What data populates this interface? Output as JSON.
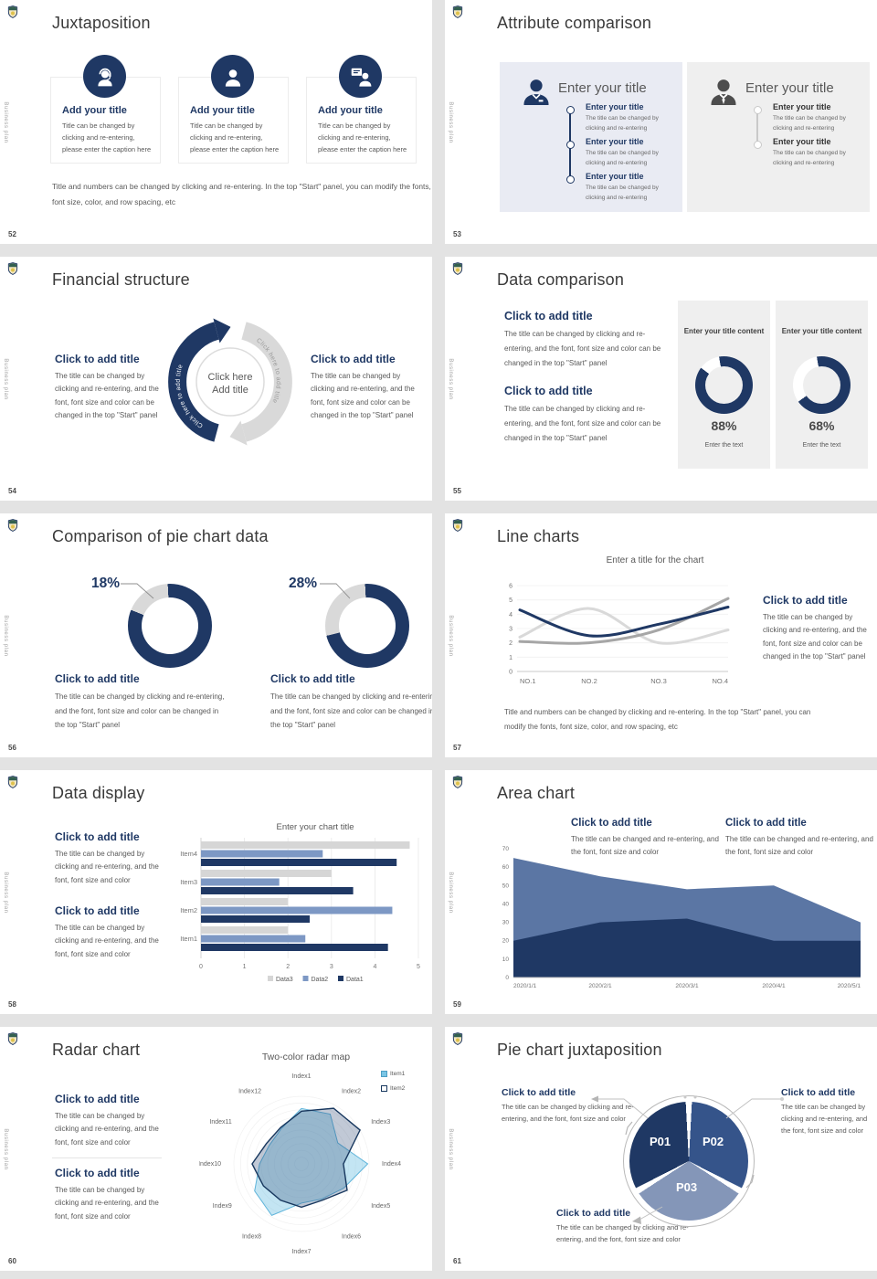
{
  "common": {
    "vertical_label": "Business plan"
  },
  "colors": {
    "navy": "#1f3864",
    "mid_blue": "#35548a",
    "light_steel": "#8496b8",
    "steel_bar": "#7d98c4",
    "area_light": "#5b76a4",
    "track_gray": "#d9d9d9",
    "body_text": "#595959",
    "panel_blue": "#e9ebf3",
    "panel_gray": "#efefef"
  },
  "slides": {
    "juxtaposition": {
      "number": "52",
      "title": "Juxtaposition",
      "cards": [
        {
          "icon": "support-agent-icon",
          "title": "Add your title",
          "caption": "Title can be changed by clicking and re-entering, please enter the caption here"
        },
        {
          "icon": "person-icon",
          "title": "Add your title",
          "caption": "Title can be changed by clicking and re-entering, please enter the caption here"
        },
        {
          "icon": "presenter-icon",
          "title": "Add your title",
          "caption": "Title can be changed by clicking and re-entering, please enter the caption here"
        }
      ],
      "footer": "Title and numbers can be changed by clicking and re-entering. In the top \"Start\" panel, you can modify the fonts, font size, color, and row spacing, etc"
    },
    "attribute_comparison": {
      "number": "53",
      "title": "Attribute comparison",
      "panels": [
        {
          "heading": "Enter your title",
          "items": [
            {
              "title": "Enter your title",
              "body": "The title can be changed by clicking and re-entering"
            },
            {
              "title": "Enter your title",
              "body": "The title can be changed by clicking and re-entering"
            },
            {
              "title": "Enter your title",
              "body": "The title can be changed by clicking and re-entering"
            }
          ]
        },
        {
          "heading": "Enter your title",
          "items": [
            {
              "title": "Enter your title",
              "body": "The title can be changed by clicking and re-entering"
            },
            {
              "title": "Enter your title",
              "body": "The title can be changed by clicking and re-entering"
            }
          ]
        }
      ]
    },
    "financial_structure": {
      "number": "54",
      "title": "Financial structure",
      "left_block": {
        "title": "Click to add title",
        "body": "The title can be changed by clicking and re-entering, and the font, font size and color can be changed in the top \"Start\" panel"
      },
      "right_block": {
        "title": "Click to add title",
        "body": "The title can be changed by clicking and re-entering, and the font, font size and color can be changed in the top \"Start\" panel"
      },
      "center": {
        "line1": "Click here",
        "line2": "Add title"
      },
      "arc_left_label": "Click here to add title",
      "arc_right_label": "Click here to add title"
    },
    "data_comparison": {
      "number": "55",
      "title": "Data comparison",
      "blocks": [
        {
          "title": "Click to add title",
          "body": "The title can be changed by clicking and re-entering, and the font, font size and color can be changed in the top \"Start\" panel"
        },
        {
          "title": "Click to add title",
          "body": "The title can be changed by clicking and re-entering, and the font, font size and color can be changed in the top \"Start\" panel"
        }
      ],
      "cards": [
        {
          "heading": "Enter your title content",
          "caption": "Enter the text"
        },
        {
          "heading": "Enter your title content",
          "caption": "Enter the text"
        }
      ]
    },
    "pie_data": {
      "number": "56",
      "title": "Comparison of pie chart data",
      "columns": [
        {
          "title": "Click to add title",
          "body": "The title can be changed by clicking and re-entering, and the font, font size and color can be changed in the top \"Start\" panel"
        },
        {
          "title": "Click to add title",
          "body": "The title can be changed by clicking and re-entering, and the font, font size and color can be changed in the top \"Start\" panel"
        }
      ]
    },
    "line_charts": {
      "number": "57",
      "title": "Line charts",
      "block": {
        "title": "Click to add title",
        "body": "The title can be changed by clicking and re-entering, and the font, font size and color can be changed in the top \"Start\" panel"
      },
      "footer": "Title and numbers can be changed by clicking and re-entering. In the top \"Start\" panel, you can modify the fonts, font size, color, and row spacing, etc"
    },
    "data_display": {
      "number": "58",
      "title": "Data display",
      "blocks": [
        {
          "title": "Click to add title",
          "body": "The title can be changed by clicking and re-entering, and the font, font size and color"
        },
        {
          "title": "Click to add title",
          "body": "The title can be changed by clicking and re-entering, and the font, font size and color"
        }
      ]
    },
    "area_chart": {
      "number": "59",
      "title": "Area chart",
      "blocks": [
        {
          "title": "Click to add title",
          "body": "The title can be changed and re-entering, and the font, font size and color"
        },
        {
          "title": "Click to add title",
          "body": "The title can be changed and re-entering, and the font, font size and color"
        }
      ]
    },
    "radar_chart": {
      "number": "60",
      "title": "Radar chart",
      "blocks": [
        {
          "title": "Click to add title",
          "body": "The title can be changed by clicking and re-entering, and the font, font size and color"
        },
        {
          "title": "Click to add title",
          "body": "The title can be changed by clicking and re-entering, and the font, font size and color"
        }
      ]
    },
    "pie_juxtaposition": {
      "number": "61",
      "title": "Pie chart juxtaposition",
      "blocks": [
        {
          "title": "Click to add title",
          "body": "The title can be changed by clicking and re-entering, and the font, font size and color"
        },
        {
          "title": "Click to add title",
          "body": "The title can be changed by clicking and re-entering, and the font, font size and color"
        },
        {
          "title": "Click to add title",
          "body": "The title can be changed by clicking and re-entering, and the font, font size and color"
        }
      ]
    }
  },
  "chart_data": [
    {
      "id": "donuts-55",
      "type": "pie",
      "variant": "donut",
      "items": [
        {
          "percent": 88,
          "label": "88%"
        },
        {
          "percent": 68,
          "label": "68%"
        }
      ],
      "ring_color": "#1f3864",
      "track_color": "#ffffff"
    },
    {
      "id": "donuts-56",
      "type": "pie",
      "variant": "donut",
      "items": [
        {
          "percent": 18,
          "label": "18%"
        },
        {
          "percent": 28,
          "label": "28%"
        }
      ],
      "slice_color": "#d9d9d9",
      "remainder_color": "#1f3864"
    },
    {
      "id": "line-57",
      "type": "line",
      "title": "Enter a title for the chart",
      "x": [
        "NO.1",
        "NO.2",
        "NO.3",
        "NO.4"
      ],
      "ylim": [
        0,
        6
      ],
      "yticks": [
        6,
        5,
        4,
        3,
        2,
        1,
        0
      ],
      "grid": true,
      "legend": false,
      "series": [
        {
          "name": "series-navy",
          "color": "#1f3864",
          "values": [
            4.3,
            2.5,
            3.3,
            4.5
          ]
        },
        {
          "name": "series-gray",
          "color": "#a6a6a6",
          "values": [
            2.1,
            2.0,
            2.9,
            5.1
          ]
        },
        {
          "name": "series-light",
          "color": "#d9d9d9",
          "values": [
            2.4,
            4.4,
            2.0,
            2.9
          ]
        }
      ]
    },
    {
      "id": "bars-58",
      "type": "bar",
      "orientation": "horizontal",
      "title": "Enter your chart title",
      "categories": [
        "Item1",
        "Item2",
        "Item3",
        "Item4"
      ],
      "xlim": [
        0,
        5
      ],
      "xticks": [
        0,
        1,
        2,
        3,
        4,
        5
      ],
      "legend_order": [
        "Data3",
        "Data2",
        "Data1"
      ],
      "legend_position": "bottom",
      "series": [
        {
          "name": "Data1",
          "color": "#1f3864",
          "values": [
            4.3,
            2.5,
            3.5,
            4.5
          ]
        },
        {
          "name": "Data2",
          "color": "#7d98c4",
          "values": [
            2.4,
            4.4,
            1.8,
            2.8
          ]
        },
        {
          "name": "Data3",
          "color": "#d6d6d6",
          "values": [
            2.0,
            2.0,
            3.0,
            4.8
          ]
        }
      ]
    },
    {
      "id": "area-59",
      "type": "area",
      "x": [
        "2020/1/1",
        "2020/2/1",
        "2020/3/1",
        "2020/4/1",
        "2020/5/1"
      ],
      "ylim": [
        0,
        70
      ],
      "yticks": [
        70,
        60,
        50,
        40,
        30,
        20,
        10,
        0
      ],
      "series": [
        {
          "name": "series-light-blue",
          "color": "#5b76a4",
          "values": [
            65,
            55,
            48,
            50,
            30
          ]
        },
        {
          "name": "series-navy",
          "color": "#1f3864",
          "values": [
            20,
            30,
            32,
            20,
            20
          ]
        }
      ]
    },
    {
      "id": "radar-60",
      "type": "radar",
      "title": "Two-color radar map",
      "rmax": 1,
      "categories": [
        "Index1",
        "Index2",
        "Index3",
        "Index4",
        "Index5",
        "Index6",
        "Index7",
        "Index8",
        "Index9",
        "Index10",
        "Index11",
        "Index12"
      ],
      "series": [
        {
          "name": "Item1",
          "color": "#5fb4da",
          "fill": "rgba(122,197,228,0.45)",
          "values": [
            0.82,
            0.85,
            0.62,
            0.98,
            0.72,
            0.6,
            0.58,
            0.88,
            0.8,
            0.62,
            0.55,
            0.6
          ]
        },
        {
          "name": "Item2",
          "color": "#17375e",
          "fill": "rgba(49,77,120,0.30)",
          "values": [
            0.78,
            0.95,
            1.0,
            0.62,
            0.78,
            0.62,
            0.64,
            0.62,
            0.65,
            0.73,
            0.6,
            0.62
          ]
        }
      ]
    },
    {
      "id": "pie-61",
      "type": "pie",
      "slices": [
        {
          "label": "P01",
          "value": 33.3,
          "color": "#1f3864"
        },
        {
          "label": "P02",
          "value": 33.3,
          "color": "#35548a"
        },
        {
          "label": "P03",
          "value": 33.3,
          "color": "#8496b8"
        }
      ]
    }
  ]
}
